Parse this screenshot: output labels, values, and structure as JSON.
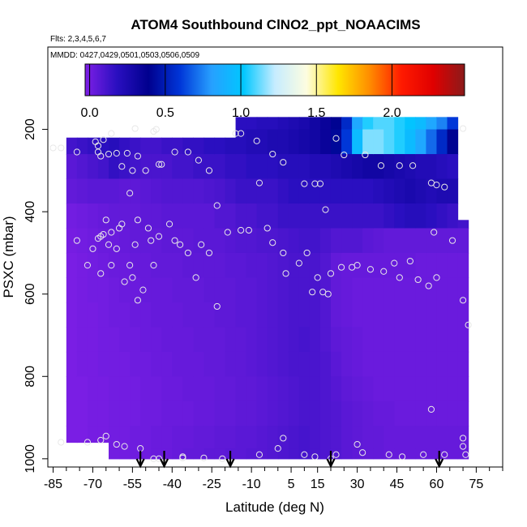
{
  "chart_data": {
    "type": "heatmap",
    "title": "ATOM4 Southbound ClNO2_ppt_NOAACIMS",
    "flights_note": "Flts: 2,3,4,5,6,7",
    "dates_note": "MMDD: 0427,0429,0501,0503,0506,0509",
    "xlabel": "Latitude (deg N)",
    "ylabel": "PSXC (mbar)",
    "x_ticks": [
      -85,
      -70,
      -55,
      -40,
      -25,
      -10,
      5,
      15,
      30,
      45,
      60,
      75
    ],
    "y_ticks": [
      200,
      400,
      600,
      800,
      1000
    ],
    "xlim": [
      -87,
      85
    ],
    "ylim": [
      1020,
      0
    ],
    "colorbar": {
      "ticks": [
        0.0,
        0.5,
        1.0,
        1.5,
        2.0
      ],
      "tick_labels": [
        "0.0",
        "0.5",
        "1.0",
        "1.5",
        "2.0"
      ],
      "range": [
        -0.03,
        2.48
      ],
      "colors": [
        "#7e1fe6",
        "#2a0fc0",
        "#00008e",
        "#0036d8",
        "#27a0ff",
        "#00c7ff",
        "#c6ecff",
        "#fdfde0",
        "#ffe600",
        "#ff8c00",
        "#ff1a00",
        "#e00000",
        "#8b1a1a"
      ]
    },
    "arrows_lat": [
      -52,
      -43,
      -18,
      20,
      61
    ],
    "grid": false,
    "legend": "colorbar-top",
    "field": {
      "lat_edges": [
        -88,
        -84,
        -80,
        -76,
        -72,
        -68,
        -64,
        -60,
        -56,
        -52,
        -48,
        -44,
        -40,
        -36,
        -32,
        -28,
        -24,
        -20,
        -16,
        -12,
        -8,
        -4,
        0,
        4,
        8,
        12,
        16,
        20,
        24,
        28,
        32,
        36,
        40,
        44,
        48,
        52,
        56,
        60,
        64,
        68,
        72
      ],
      "bottom_pressure": [
        0,
        0,
        960,
        960,
        960,
        960,
        1000,
        1000,
        1000,
        1000,
        1000,
        1000,
        1000,
        1000,
        1000,
        1000,
        1000,
        1000,
        1000,
        1000,
        1000,
        1000,
        1000,
        1000,
        1000,
        1000,
        1000,
        1000,
        1000,
        1000,
        1000,
        1000,
        1000,
        1000,
        1000,
        1000,
        1000,
        1000,
        1000,
        1000
      ],
      "top_pressure": [
        390,
        220,
        220,
        220,
        220,
        220,
        220,
        220,
        220,
        220,
        220,
        220,
        220,
        220,
        220,
        220,
        220,
        220,
        170,
        170,
        170,
        170,
        170,
        170,
        170,
        170,
        170,
        170,
        170,
        170,
        170,
        170,
        170,
        170,
        170,
        170,
        170,
        170,
        170,
        420
      ],
      "pressure_rows": [
        170,
        230,
        290,
        350,
        410,
        470,
        530,
        590,
        650,
        710,
        770,
        830,
        890,
        950,
        1000
      ],
      "values": [
        [
          0.02,
          0.05,
          0.05,
          0.08,
          0.08,
          0.12,
          0.12,
          0.1,
          0.1,
          0.08,
          0.08,
          0.1,
          0.1,
          0.12,
          0.14,
          0.14,
          0.16,
          0.16,
          0.18,
          0.18,
          0.2,
          0.2,
          0.22,
          0.24,
          0.26,
          0.3,
          0.34,
          0.4,
          0.55,
          0.85,
          1.05,
          1.1,
          1.1,
          1.05,
          1.0,
          0.95,
          0.85,
          0.75,
          0.6,
          0.3
        ],
        [
          0.02,
          0.1,
          0.12,
          0.14,
          0.16,
          0.18,
          0.2,
          0.16,
          0.14,
          0.12,
          0.12,
          0.14,
          0.14,
          0.16,
          0.16,
          0.18,
          0.18,
          0.2,
          0.2,
          0.22,
          0.22,
          0.24,
          0.24,
          0.26,
          0.28,
          0.3,
          0.34,
          0.42,
          0.6,
          0.95,
          1.15,
          1.15,
          1.1,
          1.05,
          0.95,
          0.85,
          0.7,
          0.55,
          0.4,
          0.3
        ],
        [
          0.01,
          0.04,
          0.06,
          0.08,
          0.1,
          0.12,
          0.16,
          0.14,
          0.12,
          0.1,
          0.1,
          0.1,
          0.12,
          0.12,
          0.14,
          0.14,
          0.14,
          0.16,
          0.16,
          0.18,
          0.18,
          0.18,
          0.2,
          0.2,
          0.2,
          0.22,
          0.22,
          0.24,
          0.26,
          0.28,
          0.3,
          0.3,
          0.28,
          0.26,
          0.24,
          0.22,
          0.22,
          0.2,
          0.18,
          0.16
        ],
        [
          0.0,
          0.02,
          0.04,
          0.05,
          0.06,
          0.06,
          0.06,
          0.05,
          0.05,
          0.06,
          0.07,
          0.08,
          0.08,
          0.08,
          0.08,
          0.09,
          0.1,
          0.12,
          0.14,
          0.14,
          0.14,
          0.14,
          0.16,
          0.18,
          0.18,
          0.18,
          0.18,
          0.18,
          0.18,
          0.18,
          0.18,
          0.2,
          0.22,
          0.24,
          0.26,
          0.24,
          0.22,
          0.24,
          0.24,
          0.22
        ],
        [
          -0.02,
          -0.01,
          0.0,
          0.01,
          0.02,
          0.03,
          0.04,
          0.04,
          0.04,
          0.05,
          0.05,
          0.06,
          0.06,
          0.06,
          0.06,
          0.06,
          0.08,
          0.08,
          0.1,
          0.1,
          0.12,
          0.12,
          0.14,
          0.14,
          0.14,
          0.14,
          0.14,
          0.14,
          0.14,
          0.14,
          0.14,
          0.14,
          0.16,
          0.18,
          0.2,
          0.2,
          0.18,
          0.16,
          0.14,
          0.12
        ],
        [
          -0.02,
          -0.02,
          -0.01,
          0.0,
          0.01,
          0.02,
          0.02,
          0.03,
          0.04,
          0.04,
          0.04,
          0.05,
          0.05,
          0.05,
          0.06,
          0.06,
          0.06,
          0.07,
          0.08,
          0.08,
          0.09,
          0.09,
          0.1,
          0.11,
          0.12,
          0.12,
          0.1,
          0.08,
          0.08,
          0.08,
          0.06,
          0.05,
          0.04,
          0.04,
          0.04,
          0.04,
          0.04,
          0.04,
          0.04,
          0.04
        ],
        [
          -0.02,
          -0.02,
          -0.02,
          -0.01,
          0.0,
          0.01,
          0.02,
          0.02,
          0.03,
          0.03,
          0.04,
          0.04,
          0.04,
          0.05,
          0.05,
          0.05,
          0.05,
          0.06,
          0.06,
          0.07,
          0.07,
          0.08,
          0.09,
          0.1,
          0.1,
          0.1,
          0.08,
          0.04,
          0.03,
          0.03,
          0.03,
          0.03,
          0.03,
          0.03,
          0.03,
          0.02,
          0.02,
          0.02,
          0.02,
          0.02
        ],
        [
          -0.02,
          -0.02,
          -0.02,
          -0.01,
          0.0,
          0.0,
          0.01,
          0.02,
          0.02,
          0.03,
          0.03,
          0.03,
          0.04,
          0.04,
          0.04,
          0.05,
          0.05,
          0.05,
          0.06,
          0.06,
          0.07,
          0.08,
          0.09,
          0.1,
          0.1,
          0.1,
          0.08,
          0.04,
          0.03,
          0.02,
          0.02,
          0.02,
          0.02,
          0.02,
          0.02,
          0.02,
          0.02,
          0.02,
          0.02,
          0.02
        ],
        [
          -0.02,
          -0.02,
          -0.02,
          -0.01,
          -0.01,
          0.0,
          0.01,
          0.01,
          0.02,
          0.02,
          0.03,
          0.03,
          0.03,
          0.04,
          0.04,
          0.04,
          0.05,
          0.05,
          0.06,
          0.06,
          0.07,
          0.08,
          0.09,
          0.1,
          0.1,
          0.1,
          0.08,
          0.04,
          0.03,
          0.02,
          0.02,
          0.02,
          0.02,
          0.02,
          0.02,
          0.02,
          0.02,
          0.02,
          0.02,
          0.02
        ],
        [
          -0.02,
          -0.02,
          -0.02,
          -0.01,
          -0.01,
          0.0,
          0.0,
          0.01,
          0.01,
          0.02,
          0.02,
          0.03,
          0.03,
          0.03,
          0.04,
          0.04,
          0.04,
          0.05,
          0.05,
          0.06,
          0.07,
          0.08,
          0.09,
          0.1,
          0.11,
          0.1,
          0.08,
          0.05,
          0.04,
          0.03,
          0.02,
          0.02,
          0.02,
          0.02,
          0.02,
          0.02,
          0.02,
          0.02,
          0.02,
          0.02
        ],
        [
          -0.02,
          -0.02,
          -0.02,
          -0.01,
          -0.01,
          0.0,
          0.0,
          0.0,
          0.01,
          0.01,
          0.02,
          0.02,
          0.03,
          0.03,
          0.03,
          0.04,
          0.04,
          0.05,
          0.05,
          0.06,
          0.07,
          0.08,
          0.09,
          0.1,
          0.1,
          0.1,
          0.09,
          0.06,
          0.04,
          0.03,
          0.02,
          0.02,
          0.02,
          0.02,
          0.02,
          0.02,
          0.02,
          0.02,
          0.02,
          0.02
        ],
        [
          -0.02,
          -0.02,
          -0.02,
          -0.02,
          -0.01,
          -0.01,
          0.0,
          0.0,
          0.0,
          0.01,
          0.01,
          0.02,
          0.02,
          0.03,
          0.03,
          0.03,
          0.04,
          0.04,
          0.05,
          0.05,
          0.06,
          0.07,
          0.08,
          0.09,
          0.1,
          0.1,
          0.09,
          0.07,
          0.05,
          0.04,
          0.03,
          0.02,
          0.02,
          0.02,
          0.02,
          0.02,
          0.02,
          0.02,
          0.02,
          0.02
        ],
        [
          -0.02,
          -0.02,
          -0.02,
          -0.02,
          -0.01,
          -0.01,
          0.0,
          0.0,
          0.0,
          0.01,
          0.01,
          0.02,
          0.02,
          0.02,
          0.03,
          0.03,
          0.04,
          0.04,
          0.05,
          0.05,
          0.06,
          0.07,
          0.08,
          0.09,
          0.1,
          0.1,
          0.09,
          0.08,
          0.06,
          0.05,
          0.04,
          0.03,
          0.03,
          0.02,
          0.02,
          0.02,
          0.02,
          0.02,
          0.02,
          0.02
        ],
        [
          -0.02,
          -0.02,
          -0.02,
          -0.02,
          -0.01,
          -0.01,
          0.0,
          0.0,
          0.01,
          0.01,
          0.02,
          0.02,
          0.03,
          0.03,
          0.04,
          0.04,
          0.05,
          0.05,
          0.06,
          0.06,
          0.07,
          0.08,
          0.09,
          0.1,
          0.11,
          0.1,
          0.09,
          0.08,
          0.06,
          0.05,
          0.04,
          0.04,
          0.03,
          0.03,
          0.03,
          0.03,
          0.03,
          0.03,
          0.03,
          0.03
        ],
        [
          -0.02,
          -0.02,
          -0.02,
          -0.02,
          -0.01,
          -0.01,
          0.0,
          0.0,
          0.01,
          0.01,
          0.02,
          0.02,
          0.03,
          0.04,
          0.04,
          0.05,
          0.05,
          0.06,
          0.06,
          0.07,
          0.07,
          0.08,
          0.09,
          0.1,
          0.11,
          0.1,
          0.09,
          0.08,
          0.06,
          0.05,
          0.04,
          0.04,
          0.03,
          0.03,
          0.03,
          0.03,
          0.03,
          0.03,
          0.03,
          0.03
        ]
      ]
    },
    "samples": [
      [
        -85,
        245
      ],
      [
        -82,
        245
      ],
      [
        -76,
        255
      ],
      [
        -69,
        230
      ],
      [
        -68,
        240
      ],
      [
        -68,
        255
      ],
      [
        -67,
        265
      ],
      [
        -66,
        225
      ],
      [
        -64,
        260
      ],
      [
        -63,
        210
      ],
      [
        -61,
        258
      ],
      [
        -59,
        290
      ],
      [
        -57,
        258
      ],
      [
        -54,
        198
      ],
      [
        -53,
        265
      ],
      [
        -47,
        205
      ],
      [
        -46,
        200
      ],
      [
        -45,
        285
      ],
      [
        -44,
        285
      ],
      [
        -39,
        255
      ],
      [
        -34,
        255
      ],
      [
        -30,
        275
      ],
      [
        -26,
        300
      ],
      [
        -16,
        210
      ],
      [
        -14,
        210
      ],
      [
        -8,
        228
      ],
      [
        -2,
        260
      ],
      [
        2,
        280
      ],
      [
        10,
        332
      ],
      [
        14,
        332
      ],
      [
        16,
        332
      ],
      [
        22,
        222
      ],
      [
        25,
        262
      ],
      [
        33,
        262
      ],
      [
        39,
        288
      ],
      [
        46,
        288
      ],
      [
        51,
        288
      ],
      [
        58,
        330
      ],
      [
        60,
        335
      ],
      [
        63,
        340
      ],
      [
        70,
        198
      ],
      [
        -56,
        355
      ],
      [
        -55,
        300
      ],
      [
        -50,
        300
      ],
      [
        -23,
        385
      ],
      [
        18,
        395
      ],
      [
        -76,
        470
      ],
      [
        -72,
        530
      ],
      [
        -70,
        490
      ],
      [
        -68,
        465
      ],
      [
        -67,
        460
      ],
      [
        -66,
        455
      ],
      [
        -67,
        550
      ],
      [
        -65,
        420
      ],
      [
        -64,
        480
      ],
      [
        -63,
        450
      ],
      [
        -63,
        530
      ],
      [
        -61,
        490
      ],
      [
        -60,
        440
      ],
      [
        -59,
        430
      ],
      [
        -58,
        570
      ],
      [
        -56,
        530
      ],
      [
        -55,
        560
      ],
      [
        -54,
        480
      ],
      [
        -53,
        420
      ],
      [
        -53,
        615
      ],
      [
        -51,
        590
      ],
      [
        -49,
        440
      ],
      [
        -48,
        470
      ],
      [
        -47,
        530
      ],
      [
        -45,
        460
      ],
      [
        -41,
        430
      ],
      [
        -39,
        470
      ],
      [
        -37,
        480
      ],
      [
        -34,
        500
      ],
      [
        -31,
        560
      ],
      [
        -29,
        480
      ],
      [
        -26,
        500
      ],
      [
        -23,
        630
      ],
      [
        -19,
        450
      ],
      [
        -14,
        445
      ],
      [
        -11,
        445
      ],
      [
        -7,
        330
      ],
      [
        -4,
        440
      ],
      [
        -2,
        475
      ],
      [
        2,
        500
      ],
      [
        3,
        550
      ],
      [
        8,
        525
      ],
      [
        11,
        500
      ],
      [
        13,
        595
      ],
      [
        15,
        560
      ],
      [
        17,
        595
      ],
      [
        19,
        600
      ],
      [
        20,
        550
      ],
      [
        24,
        535
      ],
      [
        28,
        535
      ],
      [
        30,
        530
      ],
      [
        35,
        540
      ],
      [
        40,
        545
      ],
      [
        44,
        525
      ],
      [
        46,
        560
      ],
      [
        50,
        520
      ],
      [
        53,
        565
      ],
      [
        57,
        580
      ],
      [
        60,
        560
      ],
      [
        59,
        450
      ],
      [
        66,
        470
      ],
      [
        70,
        615
      ],
      [
        72,
        675
      ],
      [
        58,
        880
      ],
      [
        -82,
        960
      ],
      [
        -72,
        960
      ],
      [
        -67,
        955
      ],
      [
        -65,
        945
      ],
      [
        -61,
        965
      ],
      [
        -58,
        970
      ],
      [
        -52,
        975
      ],
      [
        -45,
        1000
      ],
      [
        -36,
        995
      ],
      [
        -28,
        998
      ],
      [
        -21,
        1000
      ],
      [
        -7,
        990
      ],
      [
        0,
        975
      ],
      [
        2,
        950
      ],
      [
        10,
        990
      ],
      [
        14,
        995
      ],
      [
        20,
        1000
      ],
      [
        22,
        990
      ],
      [
        30,
        965
      ],
      [
        32,
        985
      ],
      [
        42,
        990
      ],
      [
        47,
        995
      ],
      [
        55,
        990
      ],
      [
        63,
        990
      ],
      [
        70,
        950
      ],
      [
        70,
        970
      ],
      [
        71,
        990
      ],
      [
        -36,
        998
      ],
      [
        -47,
        1000
      ]
    ]
  }
}
